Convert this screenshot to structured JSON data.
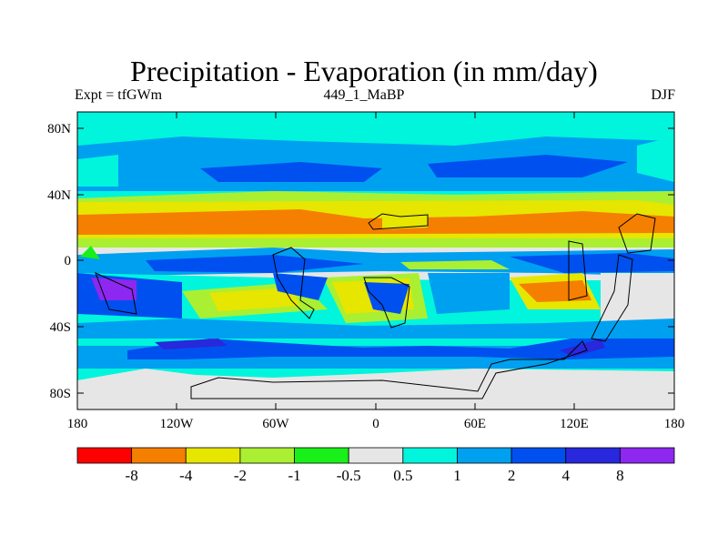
{
  "title": "Precipitation - Evaporation (in mm/day)",
  "subtitle_left": "Expt = tfGWm",
  "subtitle_center": "449_1_MaBP",
  "subtitle_right": "DJF",
  "y_ticks": [
    "80N",
    "40N",
    "0",
    "40S",
    "80S"
  ],
  "x_ticks": [
    "180",
    "120W",
    "60W",
    "0",
    "60E",
    "120E",
    "180"
  ],
  "colorbar": {
    "colors": [
      "#ff0000",
      "#f57f00",
      "#e6e600",
      "#aaef32",
      "#19ef19",
      "#e6e6e6",
      "#00f5dc",
      "#00a0f0",
      "#0050f0",
      "#2828dc",
      "#8c28f0"
    ],
    "labels": [
      "-8",
      "-4",
      "-2",
      "-1",
      "-0.5",
      "0.5",
      "1",
      "2",
      "4",
      "8"
    ]
  },
  "map": {
    "lon_range": [
      -180,
      180
    ],
    "lat_range": [
      -90,
      90
    ],
    "variable": "P-E",
    "units": "mm/day"
  }
}
